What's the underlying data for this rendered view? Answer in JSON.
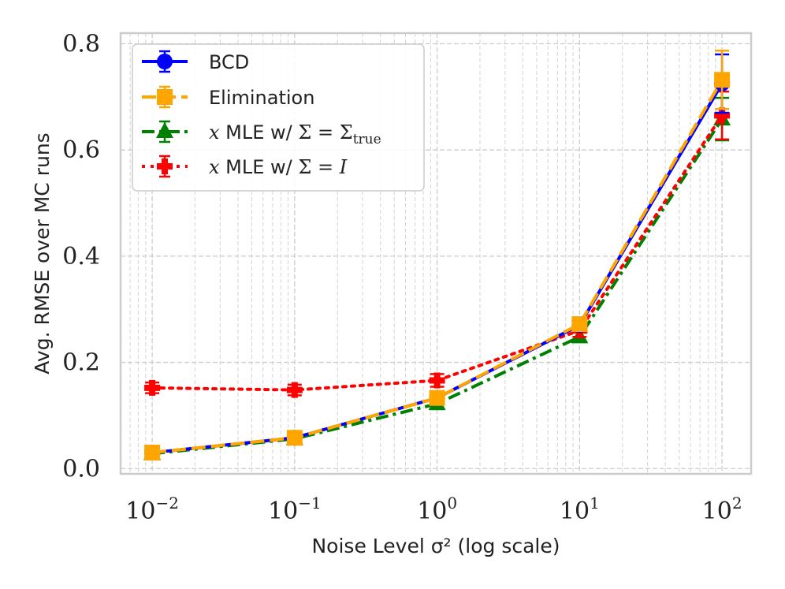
{
  "chart_data": {
    "type": "line",
    "x_scale": "log",
    "x": [
      0.01,
      0.1,
      1,
      10,
      100
    ],
    "xlim": [
      0.006,
      160
    ],
    "ylim": [
      -0.01,
      0.82
    ],
    "grid": true,
    "xlabel": "Noise Level σ² (log scale)",
    "ylabel": "Avg. RMSE over MC runs",
    "x_ticks": [
      {
        "value": 0.01,
        "base": "10",
        "exp": "−2"
      },
      {
        "value": 0.1,
        "base": "10",
        "exp": "−1"
      },
      {
        "value": 1,
        "base": "10",
        "exp": "0"
      },
      {
        "value": 10,
        "base": "10",
        "exp": "1"
      },
      {
        "value": 100,
        "base": "10",
        "exp": "2"
      }
    ],
    "y_ticks": [
      {
        "value": 0.0,
        "label": "0.0"
      },
      {
        "value": 0.2,
        "label": "0.2"
      },
      {
        "value": 0.4,
        "label": "0.4"
      },
      {
        "value": 0.6,
        "label": "0.6"
      },
      {
        "value": 0.8,
        "label": "0.8"
      }
    ],
    "legend_position": "top-left",
    "series": [
      {
        "name": "BCD",
        "color": "#0000ff",
        "linestyle": "solid",
        "marker": "circle",
        "values": [
          0.03,
          0.058,
          0.133,
          0.27,
          0.725
        ],
        "errors": [
          0.003,
          0.005,
          0.01,
          0.01,
          0.055
        ]
      },
      {
        "name": "Elimination",
        "color": "#ffa500",
        "linestyle": "dashed",
        "marker": "square",
        "values": [
          0.03,
          0.058,
          0.133,
          0.272,
          0.732
        ],
        "errors": [
          0.003,
          0.005,
          0.01,
          0.01,
          0.055
        ]
      },
      {
        "name": "x MLE w/ Σ = Σ_true",
        "legend_parts": {
          "var": "x",
          "mid": " MLE w/ ",
          "rhs": "Σ = Σ",
          "sub": "true"
        },
        "color": "#008000",
        "linestyle": "dashdot",
        "marker": "triangle",
        "values": [
          0.028,
          0.056,
          0.122,
          0.248,
          0.658
        ],
        "errors": [
          0.003,
          0.005,
          0.01,
          0.01,
          0.04
        ]
      },
      {
        "name": "x MLE w/ Σ = I",
        "legend_parts": {
          "var": "x",
          "mid": " MLE w/ ",
          "rhs": "Σ = ",
          "sub": "",
          "rhsvar": "I"
        },
        "color": "#ff0000",
        "linestyle": "dotted",
        "marker": "plus",
        "values": [
          0.152,
          0.148,
          0.166,
          0.26,
          0.665
        ],
        "errors": [
          0.01,
          0.01,
          0.012,
          0.012,
          0.045
        ]
      }
    ]
  }
}
